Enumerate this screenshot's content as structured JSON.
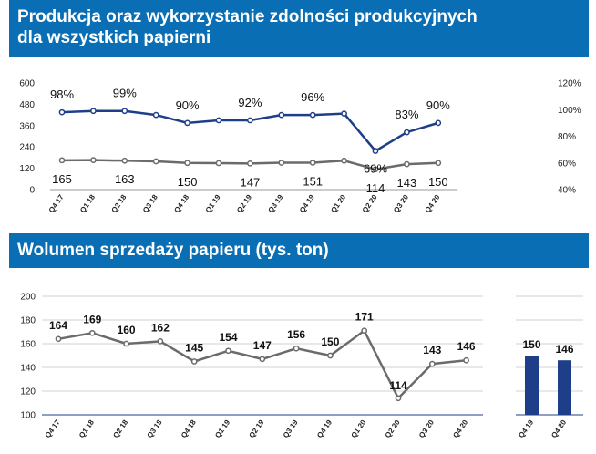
{
  "header_top": {
    "line1": "Produkcja oraz wykorzystanie zdolności produkcyjnych",
    "line2": "dla wszystkich papierni"
  },
  "header_bottom": {
    "title": "Wolumen sprzedaży papieru (tys. ton)"
  },
  "colors": {
    "header_bg": "#0a6eb4",
    "utilization_line": "#1f3e8a",
    "production_line": "#6b6b6b",
    "bar": "#1f3e8a"
  },
  "chart_data": [
    {
      "type": "line",
      "categories": [
        "Q4 17",
        "Q1 18",
        "Q2 18",
        "Q3 18",
        "Q4 18",
        "Q1 19",
        "Q2 19",
        "Q3 19",
        "Q4 19",
        "Q1 20",
        "Q2 20",
        "Q3 20",
        "Q4 20"
      ],
      "series": [
        {
          "axis": "left",
          "values": [
            165,
            166,
            163,
            159,
            150,
            149,
            147,
            151,
            151,
            163,
            114,
            143,
            150
          ],
          "labels": [
            "165",
            "",
            "163",
            "",
            "150",
            "",
            "147",
            "",
            "151",
            "",
            "114",
            "143",
            "150"
          ]
        },
        {
          "axis": "right",
          "values": [
            98,
            99,
            99,
            96,
            90,
            92,
            92,
            96,
            96,
            97,
            69,
            83,
            90
          ],
          "labels": [
            "98%",
            "",
            "99%",
            "",
            "90%",
            "",
            "92%",
            "",
            "96%",
            "",
            "69%",
            "83%",
            "90%"
          ]
        }
      ],
      "ylim_left": [
        0,
        600
      ],
      "yticks_left": [
        "0",
        "120",
        "240",
        "360",
        "480",
        "600"
      ],
      "ylim_right": [
        40,
        120
      ],
      "yticks_right": [
        "40%",
        "60%",
        "80%",
        "100%",
        "120%"
      ]
    },
    {
      "type": "line",
      "categories": [
        "Q4 17",
        "Q1 18",
        "Q2 18",
        "Q3 18",
        "Q4 18",
        "Q1 19",
        "Q2 19",
        "Q3 19",
        "Q4 19",
        "Q1 20",
        "Q2 20",
        "Q3 20",
        "Q4 20"
      ],
      "values": [
        164,
        169,
        160,
        162,
        145,
        154,
        147,
        156,
        150,
        171,
        114,
        143,
        146
      ],
      "labels": [
        "164",
        "169",
        "160",
        "162",
        "145",
        "154",
        "147",
        "156",
        "150",
        "171",
        "114",
        "143",
        "146"
      ],
      "ylim": [
        100,
        200
      ],
      "yticks": [
        "100",
        "120",
        "140",
        "160",
        "180",
        "200"
      ],
      "grid": true
    },
    {
      "type": "bar",
      "categories": [
        "Q4 19",
        "Q4 20"
      ],
      "values": [
        150,
        146
      ],
      "labels": [
        "150",
        "146"
      ],
      "ylim": [
        100,
        200
      ],
      "grid": true
    }
  ]
}
